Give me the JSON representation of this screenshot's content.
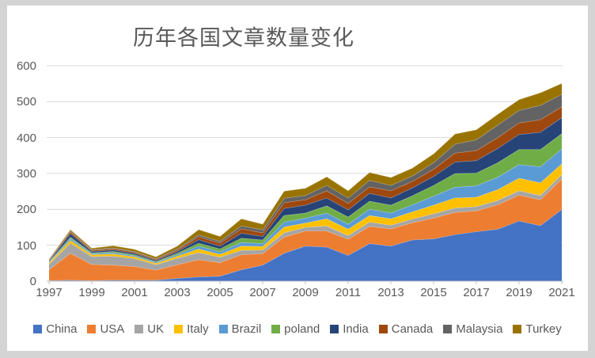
{
  "window": {
    "frame_color": "#d4d4d4",
    "canvas_color": "#ffffff"
  },
  "chart_data": {
    "type": "area",
    "stacked": true,
    "title": "历年各国文章数量变化",
    "xlabel": "",
    "ylabel": "",
    "x": [
      1997,
      1998,
      1999,
      2000,
      2001,
      2002,
      2003,
      2004,
      2005,
      2006,
      2007,
      2008,
      2009,
      2010,
      2011,
      2012,
      2013,
      2014,
      2015,
      2016,
      2017,
      2018,
      2019,
      2020,
      2021
    ],
    "x_tick_labels": [
      "1997",
      "1999",
      "2001",
      "2003",
      "2005",
      "2007",
      "2009",
      "2011",
      "2013",
      "2015",
      "2017",
      "2019",
      "2021"
    ],
    "ylim": [
      0,
      600
    ],
    "yticks": [
      0,
      100,
      200,
      300,
      400,
      500,
      600
    ],
    "grid": "horizontal",
    "gridline_color": "#d9d9d9",
    "axis_line_color": "#c0c0c0",
    "text_color": "#595959",
    "legend_position": "bottom",
    "series": [
      {
        "name": "China",
        "color": "#4472C4",
        "values": [
          2,
          3,
          2,
          3,
          3,
          3,
          8,
          12,
          14,
          32,
          45,
          78,
          98,
          95,
          72,
          105,
          98,
          115,
          118,
          130,
          138,
          145,
          168,
          155,
          200
        ]
      },
      {
        "name": "USA",
        "color": "#ED7D31",
        "values": [
          30,
          75,
          45,
          42,
          38,
          28,
          38,
          48,
          38,
          42,
          32,
          45,
          42,
          45,
          45,
          48,
          48,
          48,
          58,
          62,
          58,
          68,
          72,
          72,
          85
        ]
      },
      {
        "name": "UK",
        "color": "#A5A5A5",
        "values": [
          15,
          28,
          22,
          25,
          22,
          15,
          18,
          20,
          15,
          12,
          10,
          12,
          10,
          14,
          10,
          12,
          10,
          10,
          12,
          12,
          12,
          12,
          12,
          12,
          12
        ]
      },
      {
        "name": "Italy",
        "color": "#FFC000",
        "values": [
          4,
          8,
          5,
          6,
          5,
          4,
          6,
          10,
          8,
          12,
          10,
          16,
          12,
          20,
          18,
          18,
          18,
          20,
          24,
          28,
          26,
          30,
          35,
          35,
          30
        ]
      },
      {
        "name": "Brazil",
        "color": "#5B9BD5",
        "values": [
          2,
          5,
          3,
          4,
          3,
          3,
          4,
          8,
          7,
          10,
          8,
          14,
          14,
          16,
          14,
          18,
          16,
          20,
          25,
          30,
          32,
          35,
          38,
          45,
          42
        ]
      },
      {
        "name": "poland",
        "color": "#70AD47",
        "values": [
          1,
          4,
          2,
          3,
          3,
          2,
          4,
          8,
          8,
          12,
          10,
          18,
          14,
          20,
          20,
          22,
          22,
          25,
          30,
          38,
          35,
          40,
          42,
          48,
          42
        ]
      },
      {
        "name": "India",
        "color": "#264478",
        "values": [
          3,
          10,
          4,
          4,
          4,
          3,
          5,
          10,
          8,
          14,
          10,
          20,
          22,
          22,
          20,
          22,
          20,
          22,
          25,
          32,
          35,
          40,
          42,
          48,
          45
        ]
      },
      {
        "name": "Canada",
        "color": "#9E480E",
        "values": [
          2,
          5,
          3,
          4,
          3,
          3,
          4,
          8,
          8,
          12,
          10,
          16,
          15,
          20,
          18,
          18,
          20,
          18,
          20,
          25,
          28,
          30,
          32,
          35,
          30
        ]
      },
      {
        "name": "Malaysia",
        "color": "#636363",
        "values": [
          1,
          2,
          2,
          2,
          2,
          2,
          3,
          5,
          5,
          8,
          8,
          12,
          12,
          15,
          15,
          18,
          15,
          15,
          18,
          25,
          30,
          35,
          35,
          40,
          35
        ]
      },
      {
        "name": "Turkey",
        "color": "#997300",
        "values": [
          2,
          4,
          4,
          6,
          6,
          5,
          8,
          15,
          14,
          20,
          16,
          20,
          20,
          24,
          20,
          22,
          22,
          22,
          25,
          28,
          28,
          30,
          30,
          35,
          30
        ]
      }
    ]
  }
}
